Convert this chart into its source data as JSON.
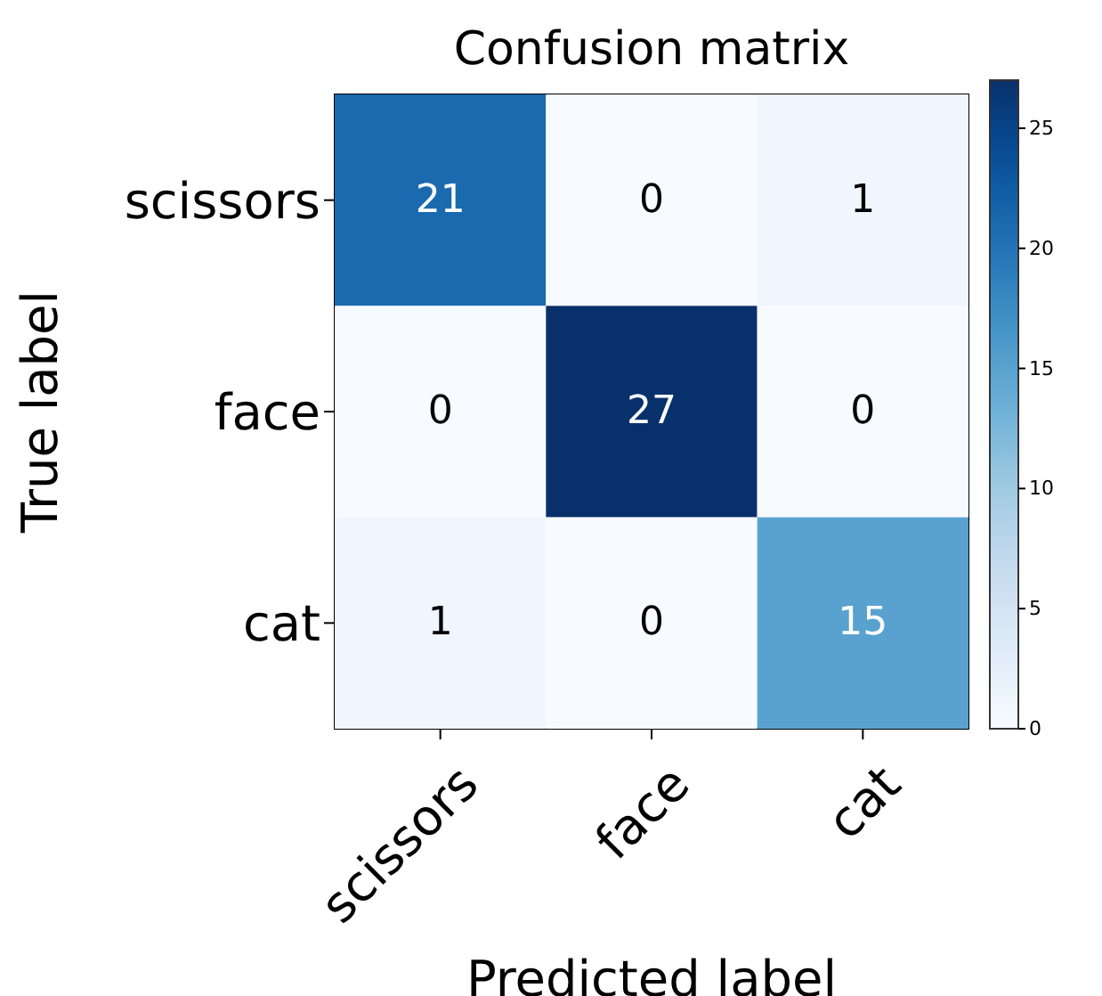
{
  "chart_data": {
    "type": "heatmap",
    "title": "Confusion matrix",
    "xlabel": "Predicted label",
    "ylabel": "True label",
    "categories": [
      "scissors",
      "face",
      "cat"
    ],
    "y_categories": [
      "scissors",
      "face",
      "cat"
    ],
    "cells": [
      [
        21,
        0,
        1
      ],
      [
        0,
        27,
        0
      ],
      [
        1,
        0,
        15
      ]
    ],
    "clim": [
      0,
      27
    ],
    "cticks": [
      0,
      5,
      10,
      15,
      20,
      25
    ],
    "data_labels": true
  }
}
